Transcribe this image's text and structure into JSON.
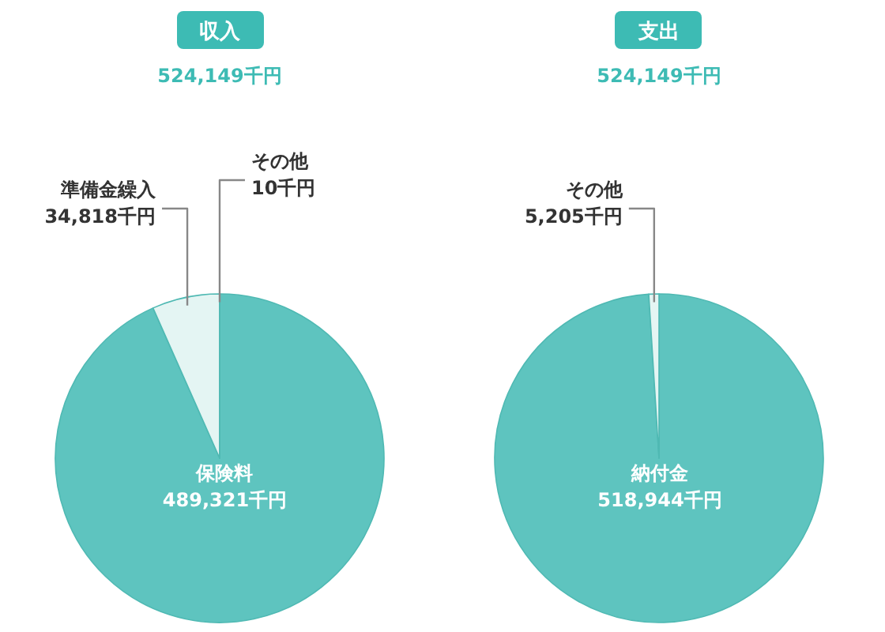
{
  "chart_data": [
    {
      "type": "pie",
      "title": "収入",
      "subtitle": "524,149千円",
      "categories": [
        "保険料",
        "準備金繰入",
        "その他"
      ],
      "values": [
        489321,
        34818,
        10
      ],
      "colors": [
        "#5ec4bf",
        "#e4f5f3",
        "#e4f5f3"
      ],
      "value_labels": [
        "489,321千円",
        "34,818千円",
        "10千円"
      ]
    },
    {
      "type": "pie",
      "title": "支出",
      "subtitle": "524,149千円",
      "categories": [
        "納付金",
        "その他"
      ],
      "values": [
        518944,
        5205
      ],
      "colors": [
        "#5ec4bf",
        "#e4f5f3"
      ],
      "value_labels": [
        "518,944千円",
        "5,205千円"
      ]
    }
  ]
}
